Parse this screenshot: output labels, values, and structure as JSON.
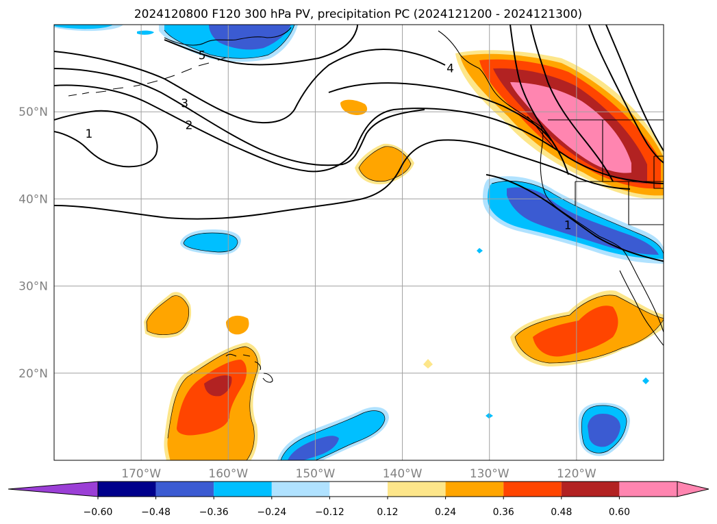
{
  "chart_data": {
    "type": "heatmap",
    "title": "2024120800 F120 300 hPa PV, precipitation PC (2024121200 - 2024121300)",
    "xlabel": "",
    "ylabel": "",
    "xlim": [
      -180,
      -110
    ],
    "ylim": [
      10,
      60
    ],
    "x_ticks": [
      -170,
      -160,
      -150,
      -140,
      -130,
      -120
    ],
    "x_tick_labels": [
      "170°W",
      "160°W",
      "150°W",
      "140°W",
      "130°W",
      "120°W"
    ],
    "y_ticks": [
      20,
      30,
      40,
      50
    ],
    "y_tick_labels": [
      "20°N",
      "30°N",
      "40°N",
      "50°N"
    ],
    "grid": true,
    "colorbar": {
      "levels": [
        -0.6,
        -0.48,
        -0.36,
        -0.24,
        -0.12,
        0.12,
        0.24,
        0.36,
        0.48,
        0.6
      ],
      "labels": [
        "−0.60",
        "−0.48",
        "−0.36",
        "−0.24",
        "−0.12",
        "0.12",
        "0.24",
        "0.36",
        "0.48",
        "0.60"
      ],
      "colors": [
        "#9b3fd6",
        "#00008b",
        "#3b5bd2",
        "#00bfff",
        "#b0e2ff",
        "#ffffff",
        "#fde68a",
        "#ffa500",
        "#ff4500",
        "#b22222",
        "#ff85b0"
      ],
      "extend": "both"
    },
    "pv_contour_labels": [
      {
        "text": "1",
        "lon": -176,
        "lat": 47.5
      },
      {
        "text": "2",
        "lon": -164.5,
        "lat": 48.5
      },
      {
        "text": "3",
        "lon": -165,
        "lat": 51
      },
      {
        "text": "5",
        "lon": -163,
        "lat": 56.5
      },
      {
        "text": "4",
        "lon": -134.5,
        "lat": 55
      },
      {
        "text": "1",
        "lon": -121,
        "lat": 37
      }
    ]
  }
}
